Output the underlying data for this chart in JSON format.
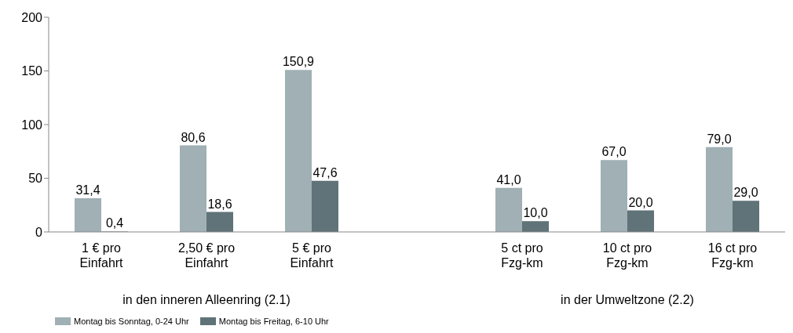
{
  "chart_data": {
    "type": "bar",
    "categories": [
      "1 € pro\nEinfahrt",
      "2,50 € pro\nEinfahrt",
      "5 € pro\nEinfahrt",
      null,
      "5 ct pro\nFzg-km",
      "10 ct pro\nFzg-km",
      "16 ct pro\nFzg-km"
    ],
    "series": [
      {
        "name": "Montag bis Sonntag, 0-24 Uhr",
        "color": "#a0b0b4",
        "values": [
          31.4,
          80.6,
          150.9,
          null,
          41.0,
          67.0,
          79.0
        ],
        "value_labels": [
          "31,4",
          "80,6",
          "150,9",
          null,
          "41,0",
          "67,0",
          "79,0"
        ]
      },
      {
        "name": "Montag bis Freitag, 6-10 Uhr",
        "color": "#5f7378",
        "values": [
          0.4,
          18.6,
          47.6,
          null,
          10.0,
          20.0,
          29.0
        ],
        "value_labels": [
          "0,4",
          "18,6",
          "47,6",
          null,
          "10,0",
          "20,0",
          "29,0"
        ]
      }
    ],
    "ylim": [
      0,
      200
    ],
    "yticks": [
      0,
      50,
      100,
      150,
      200
    ],
    "legend": "bottom left",
    "annotations": [
      "in den inneren Alleenring (2.1)",
      "in der Umweltzone (2.2)"
    ]
  }
}
